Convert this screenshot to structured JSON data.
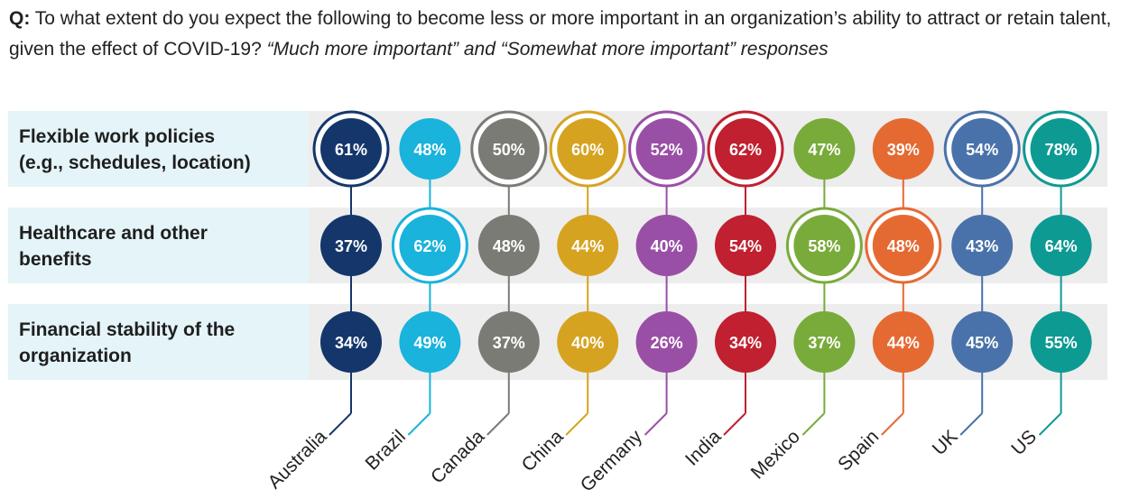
{
  "question": {
    "prefix": "Q:",
    "text": " To what extent do you expect the following to become less or more important in an organization’s ability to attract or retain talent, given the effect of COVID-19? ",
    "italic": "“Much more important” and “Somewhat more important” responses"
  },
  "chart_data": {
    "type": "table",
    "title": "To what extent do you expect the following to become less or more important in an organization’s ability to attract or retain talent, given the effect of COVID-19?",
    "unit": "%",
    "rows": [
      {
        "label_lines": [
          "Flexible work policies",
          "(e.g., schedules, location)"
        ],
        "label": "Flexible work policies (e.g., schedules, location)"
      },
      {
        "label_lines": [
          "Healthcare and other",
          "benefits"
        ],
        "label": "Healthcare and other benefits"
      },
      {
        "label_lines": [
          "Financial stability of the",
          "organization"
        ],
        "label": "Financial stability of the organization"
      }
    ],
    "countries": [
      {
        "name": "Australia",
        "color": "#14366b",
        "values": [
          61,
          37,
          34
        ],
        "highlight_row": 0
      },
      {
        "name": "Brazil",
        "color": "#19b3dc",
        "values": [
          48,
          62,
          49
        ],
        "highlight_row": 1
      },
      {
        "name": "Canada",
        "color": "#7b7b76",
        "values": [
          50,
          48,
          37
        ],
        "highlight_row": 0
      },
      {
        "name": "China",
        "color": "#d6a321",
        "values": [
          60,
          44,
          40
        ],
        "highlight_row": 0
      },
      {
        "name": "Germany",
        "color": "#9a4fa6",
        "values": [
          52,
          40,
          26
        ],
        "highlight_row": 0
      },
      {
        "name": "India",
        "color": "#c0202f",
        "values": [
          62,
          54,
          34
        ],
        "highlight_row": 0
      },
      {
        "name": "Mexico",
        "color": "#79ab3a",
        "values": [
          47,
          58,
          37
        ],
        "highlight_row": 1
      },
      {
        "name": "Spain",
        "color": "#e56a32",
        "values": [
          39,
          48,
          44
        ],
        "highlight_row": 1
      },
      {
        "name": "UK",
        "color": "#4a72aa",
        "values": [
          54,
          43,
          45
        ],
        "highlight_row": 0
      },
      {
        "name": "US",
        "color": "#0d9a93",
        "values": [
          78,
          64,
          55
        ],
        "highlight_row": 0
      }
    ]
  },
  "colors": {
    "label_panel": "#e4f4f8",
    "row_band": "#ededed",
    "text": "#222222"
  }
}
